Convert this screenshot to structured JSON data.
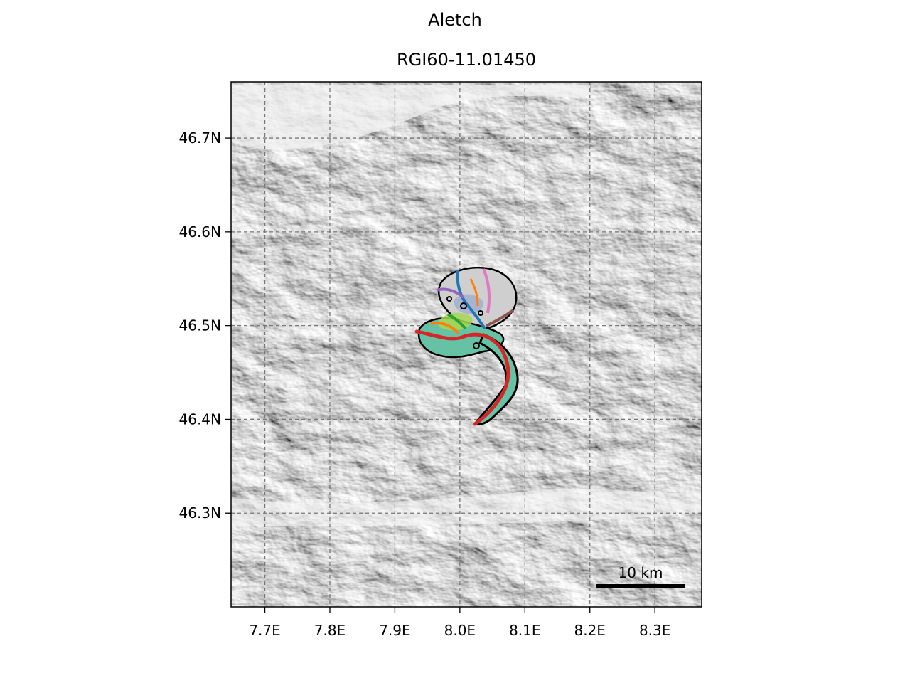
{
  "figure": {
    "suptitle": "Aletch",
    "title": "RGI60-11.01450"
  },
  "map": {
    "extent": {
      "lon": [
        7.648,
        8.372
      ],
      "lat": [
        46.2,
        46.76
      ]
    },
    "background": "hillshade",
    "grid": true,
    "grid_style": "dashed",
    "x_ticks": [
      {
        "value": 7.7,
        "label": "7.7E"
      },
      {
        "value": 7.8,
        "label": "7.8E"
      },
      {
        "value": 7.9,
        "label": "7.9E"
      },
      {
        "value": 8.0,
        "label": "8.0E"
      },
      {
        "value": 8.1,
        "label": "8.1E"
      },
      {
        "value": 8.2,
        "label": "8.2E"
      },
      {
        "value": 8.3,
        "label": "8.3E"
      }
    ],
    "y_ticks": [
      {
        "value": 46.3,
        "label": "46.3N"
      },
      {
        "value": 46.4,
        "label": "46.4N"
      },
      {
        "value": 46.5,
        "label": "46.5N"
      },
      {
        "value": 46.6,
        "label": "46.6N"
      },
      {
        "value": 46.7,
        "label": "46.7N"
      }
    ],
    "scale_bar": {
      "label": "10 km",
      "length_km": 10,
      "placement": "bottom-right"
    },
    "glacier": {
      "outline_color": "#000000",
      "fill_colors": [
        "#66c2a5",
        "#a6d854",
        "#fc8d62",
        "#8da0cb",
        "#cccccc"
      ],
      "flowline_colors": {
        "main": "#d62728",
        "blue": "#1f77b4",
        "orange": "#ff7f0e",
        "green": "#2ca02c",
        "purple": "#9467bd",
        "brown": "#8c564b",
        "pink": "#e377c2"
      }
    }
  }
}
